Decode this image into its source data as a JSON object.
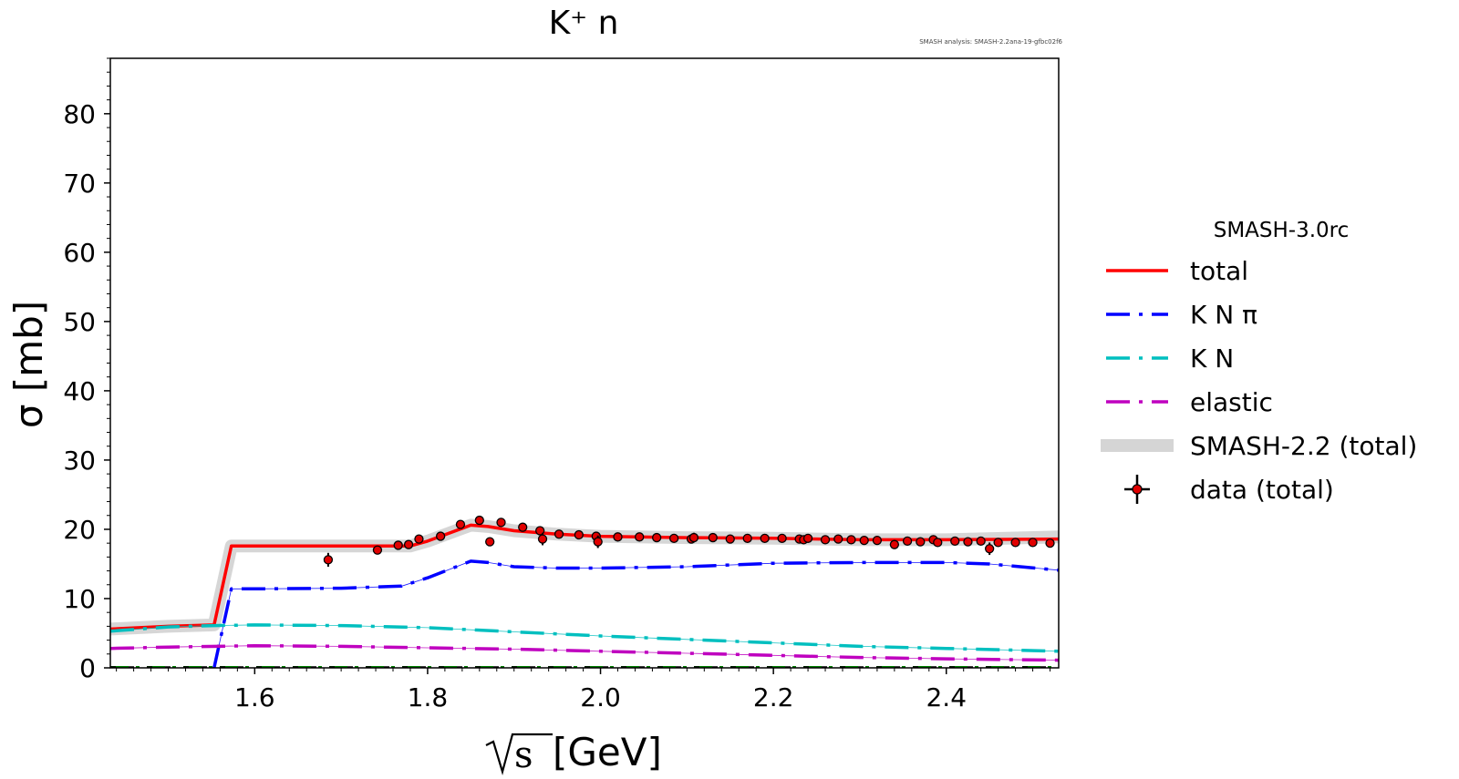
{
  "chart_data": {
    "type": "line",
    "title": "K⁺ n",
    "annotation": "SMASH analysis: SMASH-2.2ana-19-gfbc02f6",
    "xlabel": "[GeV]",
    "xlabel_sqrt_symbol": "s",
    "ylabel": "σ [mb]",
    "xlim": [
      1.433,
      2.53
    ],
    "ylim": [
      0,
      88
    ],
    "xticks": [
      1.6,
      1.8,
      2.0,
      2.2,
      2.4
    ],
    "xtick_labels": [
      "1.6",
      "1.8",
      "2.0",
      "2.2",
      "2.4"
    ],
    "yticks": [
      0,
      10,
      20,
      30,
      40,
      50,
      60,
      70,
      80
    ],
    "ytick_labels": [
      "0",
      "10",
      "20",
      "30",
      "40",
      "50",
      "60",
      "70",
      "80"
    ],
    "legend_title": "SMASH-3.0rc",
    "legend_position": "outside-right",
    "series": [
      {
        "name": "total",
        "color": "#ff0000",
        "style": "solid",
        "x": [
          1.433,
          1.5,
          1.553,
          1.573,
          1.6,
          1.7,
          1.75,
          1.78,
          1.8,
          1.85,
          1.87,
          1.9,
          1.95,
          2.0,
          2.1,
          2.2,
          2.3,
          2.4,
          2.53
        ],
        "y": [
          5.6,
          6.0,
          6.2,
          17.6,
          17.6,
          17.6,
          17.6,
          17.6,
          18.3,
          20.6,
          20.4,
          19.8,
          19.3,
          19.0,
          18.8,
          18.7,
          18.5,
          18.5,
          18.6
        ]
      },
      {
        "name": "K N π",
        "color": "#0000ff",
        "style": "dashdot",
        "x": [
          1.553,
          1.573,
          1.6,
          1.7,
          1.77,
          1.8,
          1.85,
          1.87,
          1.9,
          1.95,
          2.0,
          2.1,
          2.2,
          2.3,
          2.4,
          2.45,
          2.53
        ],
        "y": [
          0,
          11.4,
          11.4,
          11.5,
          11.8,
          13.0,
          15.4,
          15.2,
          14.6,
          14.4,
          14.4,
          14.6,
          15.1,
          15.2,
          15.2,
          15.0,
          14.1
        ]
      },
      {
        "name": "K N",
        "color": "#00bfbf",
        "style": "dashdot",
        "x": [
          1.433,
          1.5,
          1.553,
          1.6,
          1.7,
          1.8,
          1.9,
          2.0,
          2.1,
          2.2,
          2.3,
          2.4,
          2.53
        ],
        "y": [
          5.3,
          5.9,
          6.1,
          6.2,
          6.1,
          5.8,
          5.2,
          4.6,
          4.1,
          3.6,
          3.1,
          2.8,
          2.4
        ]
      },
      {
        "name": "elastic",
        "color": "#bf00bf",
        "style": "dashdot",
        "x": [
          1.433,
          1.5,
          1.6,
          1.7,
          1.8,
          1.9,
          2.0,
          2.1,
          2.2,
          2.3,
          2.4,
          2.53
        ],
        "y": [
          2.8,
          3.0,
          3.2,
          3.1,
          2.9,
          2.7,
          2.4,
          2.1,
          1.8,
          1.5,
          1.3,
          1.1
        ]
      },
      {
        "name": "SMASH-2.2 (total)",
        "color": "#c8c8c8",
        "style": "band",
        "x": [
          1.433,
          1.5,
          1.553,
          1.573,
          1.6,
          1.7,
          1.75,
          1.78,
          1.8,
          1.85,
          1.87,
          1.9,
          1.95,
          2.0,
          2.1,
          2.2,
          2.3,
          2.4,
          2.53
        ],
        "y": [
          5.6,
          6.0,
          6.2,
          17.6,
          17.6,
          17.6,
          17.6,
          17.6,
          18.3,
          20.6,
          20.4,
          19.8,
          19.3,
          19.0,
          18.8,
          18.7,
          18.5,
          18.5,
          18.9
        ]
      }
    ],
    "data_points": {
      "name": "data (total)",
      "x": [
        1.685,
        1.742,
        1.766,
        1.778,
        1.79,
        1.815,
        1.838,
        1.86,
        1.872,
        1.885,
        1.91,
        1.93,
        1.933,
        1.952,
        1.975,
        1.995,
        1.997,
        2.02,
        2.045,
        2.065,
        2.085,
        2.105,
        2.108,
        2.13,
        2.15,
        2.17,
        2.19,
        2.21,
        2.23,
        2.235,
        2.24,
        2.26,
        2.275,
        2.29,
        2.305,
        2.32,
        2.34,
        2.355,
        2.37,
        2.385,
        2.39,
        2.41,
        2.425,
        2.44,
        2.45,
        2.46,
        2.48,
        2.5,
        2.52
      ],
      "y": [
        15.6,
        17.0,
        17.7,
        17.8,
        18.6,
        19.0,
        20.7,
        21.3,
        18.2,
        21.0,
        20.3,
        19.8,
        18.6,
        19.3,
        19.2,
        19.0,
        18.2,
        18.9,
        18.9,
        18.8,
        18.7,
        18.6,
        18.8,
        18.8,
        18.6,
        18.7,
        18.7,
        18.7,
        18.6,
        18.5,
        18.7,
        18.5,
        18.6,
        18.5,
        18.4,
        18.4,
        17.8,
        18.3,
        18.2,
        18.5,
        18.1,
        18.3,
        18.2,
        18.3,
        17.2,
        18.1,
        18.1,
        18.1,
        18.0
      ],
      "yerr": [
        1.0,
        0.5,
        0.5,
        0.6,
        0.5,
        0.4,
        0.5,
        0.4,
        0.5,
        0.4,
        0.4,
        0.5,
        0.9,
        0.4,
        0.4,
        0.4,
        0.9,
        0.4,
        0.4,
        0.4,
        0.4,
        0.4,
        0.7,
        0.4,
        0.4,
        0.4,
        0.4,
        0.4,
        0.4,
        0.4,
        0.4,
        0.4,
        0.4,
        0.4,
        0.4,
        0.4,
        0.5,
        0.4,
        0.4,
        0.4,
        0.6,
        0.4,
        0.4,
        0.4,
        0.9,
        0.4,
        0.4,
        0.4,
        0.4
      ]
    }
  }
}
